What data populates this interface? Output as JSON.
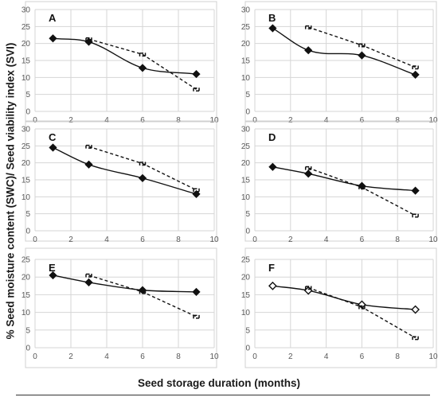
{
  "figure": {
    "ylabel": "% Seed moisture content (SWC)/ Seed viability index (SVI)",
    "xlabel": "Seed storage duration (months)"
  },
  "chart_data": [
    {
      "type": "line",
      "panel": "A",
      "xlim": [
        0,
        10
      ],
      "ylim": [
        0,
        30
      ],
      "xticks": [
        0,
        2,
        4,
        6,
        8,
        10
      ],
      "yticks": [
        0,
        5,
        10,
        15,
        20,
        25,
        30
      ],
      "series": [
        {
          "style": "solid",
          "marker": "filled-diamond",
          "x": [
            1,
            3,
            6,
            9
          ],
          "y": [
            21.5,
            20.5,
            12.8,
            11.0
          ]
        },
        {
          "style": "dashed",
          "marker": "bracket",
          "x": [
            3,
            6,
            9
          ],
          "y": [
            21.3,
            16.8,
            6.5
          ]
        }
      ]
    },
    {
      "type": "line",
      "panel": "B",
      "xlim": [
        0,
        10
      ],
      "ylim": [
        0,
        30
      ],
      "xticks": [
        0,
        2,
        4,
        6,
        8,
        10
      ],
      "yticks": [
        0,
        5,
        10,
        15,
        20,
        25,
        30
      ],
      "series": [
        {
          "style": "solid",
          "marker": "filled-diamond",
          "x": [
            1,
            3,
            6,
            9
          ],
          "y": [
            24.5,
            18.0,
            16.5,
            10.8
          ]
        },
        {
          "style": "dashed",
          "marker": "bracket",
          "x": [
            3,
            6,
            9
          ],
          "y": [
            24.8,
            19.5,
            13.0
          ]
        }
      ]
    },
    {
      "type": "line",
      "panel": "C",
      "xlim": [
        0,
        10
      ],
      "ylim": [
        0,
        30
      ],
      "xticks": [
        0,
        2,
        4,
        6,
        8,
        10
      ],
      "yticks": [
        0,
        5,
        10,
        15,
        20,
        25,
        30
      ],
      "series": [
        {
          "style": "solid",
          "marker": "filled-diamond",
          "x": [
            1,
            3,
            6,
            9
          ],
          "y": [
            24.5,
            19.5,
            15.5,
            10.8
          ]
        },
        {
          "style": "dashed",
          "marker": "bracket",
          "x": [
            3,
            6,
            9
          ],
          "y": [
            24.8,
            19.8,
            12.0
          ]
        }
      ]
    },
    {
      "type": "line",
      "panel": "D",
      "xlim": [
        0,
        10
      ],
      "ylim": [
        0,
        30
      ],
      "xticks": [
        0,
        2,
        4,
        6,
        8,
        10
      ],
      "yticks": [
        0,
        5,
        10,
        15,
        20,
        25,
        30
      ],
      "series": [
        {
          "style": "solid",
          "marker": "filled-diamond",
          "x": [
            1,
            3,
            6,
            9
          ],
          "y": [
            18.8,
            16.8,
            13.2,
            11.8
          ]
        },
        {
          "style": "dashed",
          "marker": "bracket",
          "x": [
            3,
            6,
            9
          ],
          "y": [
            18.5,
            12.8,
            4.5
          ]
        }
      ]
    },
    {
      "type": "line",
      "panel": "E",
      "xlim": [
        0,
        10
      ],
      "ylim": [
        0,
        25
      ],
      "xticks": [
        0,
        2,
        4,
        6,
        8,
        10
      ],
      "yticks": [
        0,
        5,
        10,
        15,
        20,
        25
      ],
      "series": [
        {
          "style": "solid",
          "marker": "filled-diamond",
          "x": [
            1,
            3,
            6,
            9
          ],
          "y": [
            20.5,
            18.5,
            16.3,
            15.8
          ]
        },
        {
          "style": "dashed",
          "marker": "bracket",
          "x": [
            3,
            6,
            9
          ],
          "y": [
            20.5,
            15.8,
            8.8
          ]
        }
      ]
    },
    {
      "type": "line",
      "panel": "F",
      "xlim": [
        0,
        10
      ],
      "ylim": [
        0,
        25
      ],
      "xticks": [
        0,
        2,
        4,
        6,
        8,
        10
      ],
      "yticks": [
        0,
        5,
        10,
        15,
        20,
        25
      ],
      "series": [
        {
          "style": "solid",
          "marker": "open-diamond",
          "x": [
            1,
            3,
            6,
            9
          ],
          "y": [
            17.5,
            16.2,
            12.2,
            10.8
          ]
        },
        {
          "style": "dashed",
          "marker": "bracket",
          "x": [
            3,
            6,
            9
          ],
          "y": [
            17.0,
            11.5,
            2.8
          ]
        }
      ]
    }
  ]
}
